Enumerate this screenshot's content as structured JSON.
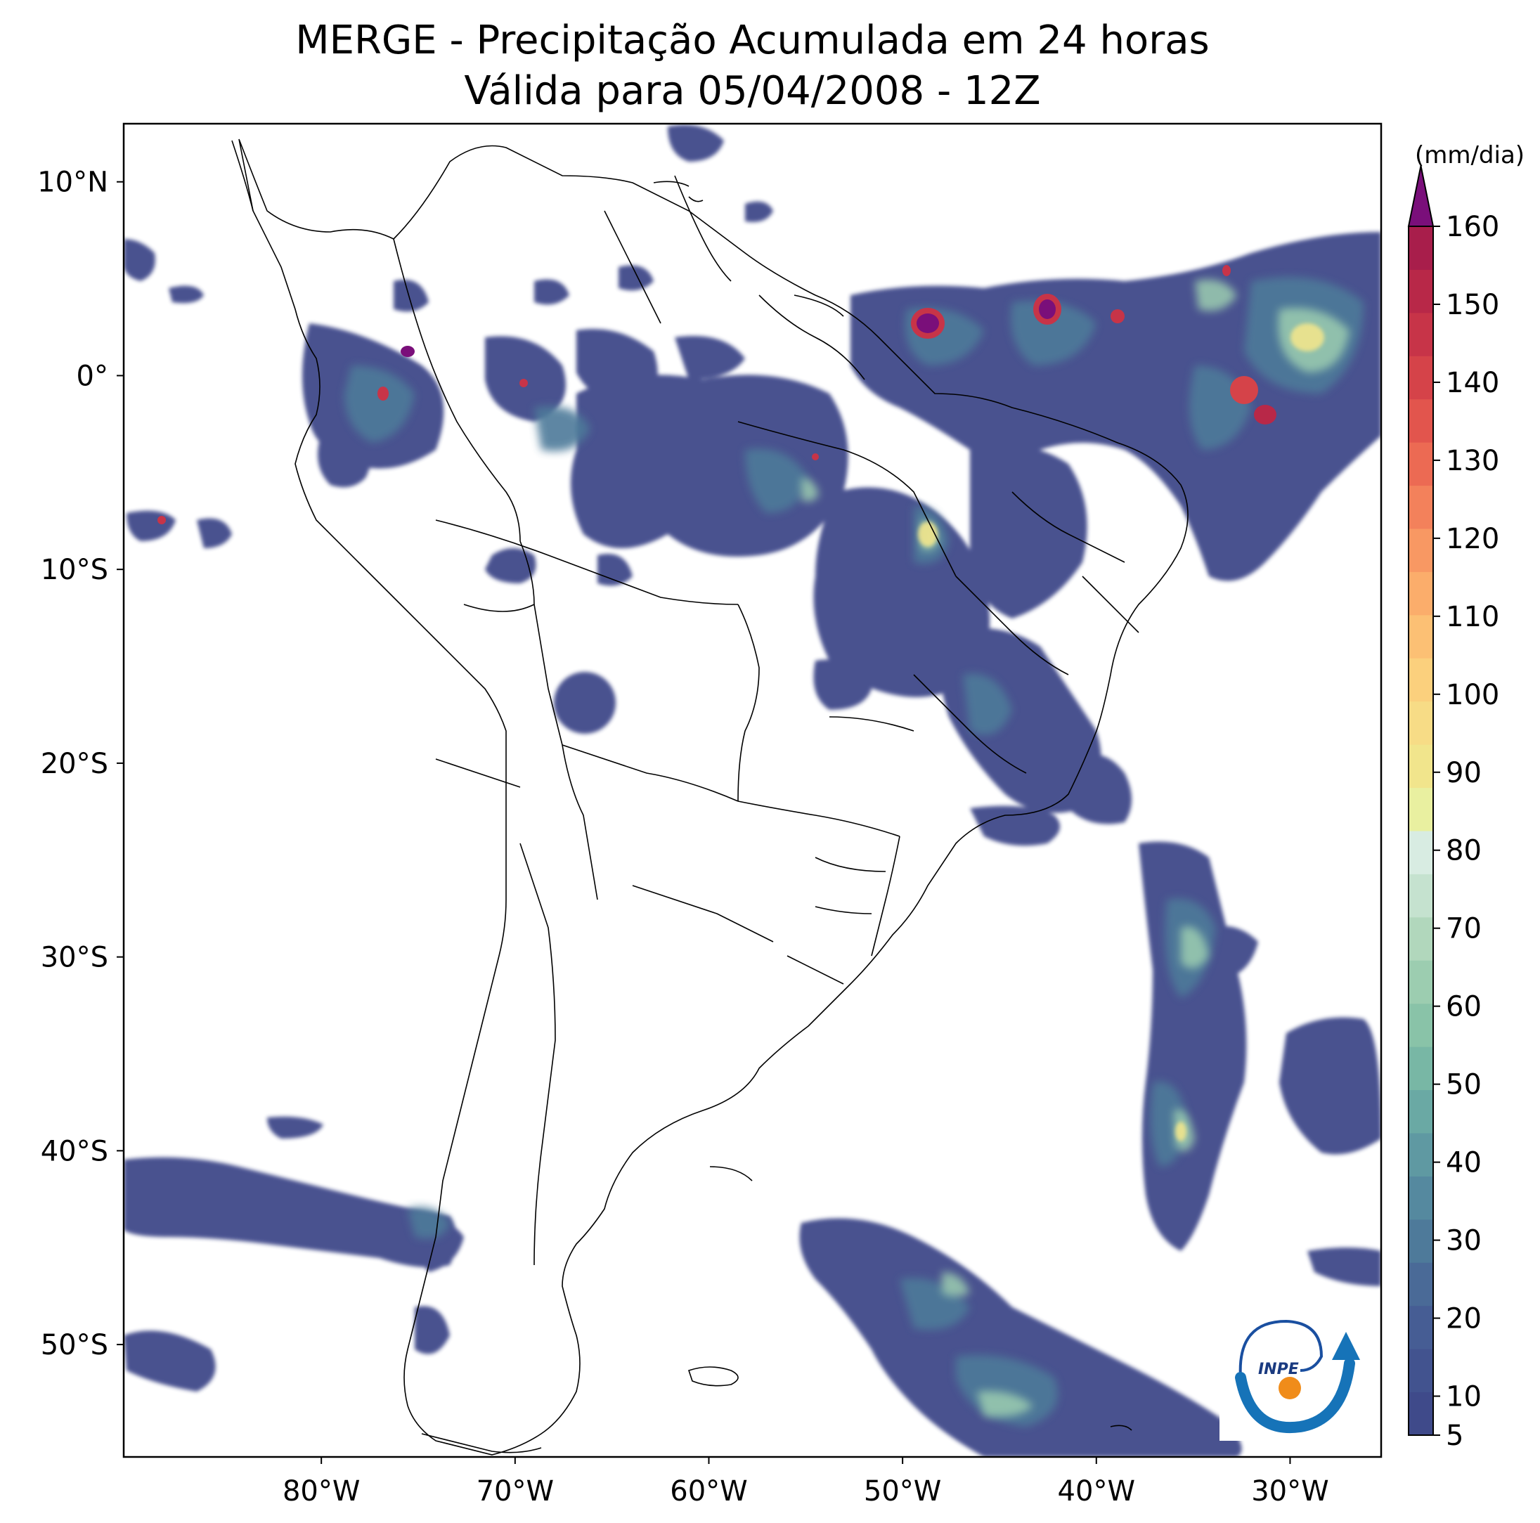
{
  "header": {
    "title_line1": "MERGE - Precipitação Acumulada em 24 horas",
    "title_line2": "Válida para 05/04/2008 - 12Z"
  },
  "axes": {
    "lat_labels": [
      "10°N",
      "0°",
      "10°S",
      "20°S",
      "30°S",
      "40°S",
      "50°S"
    ],
    "lat_values": [
      10,
      0,
      -10,
      -20,
      -30,
      -40,
      -50
    ],
    "lon_labels": [
      "80°W",
      "70°W",
      "60°W",
      "50°W",
      "40°W",
      "30°W"
    ],
    "lon_values": [
      -80,
      -70,
      -60,
      -50,
      -40,
      -30
    ],
    "lat_range": [
      -55.8,
      13.0
    ],
    "lon_range": [
      -90.2,
      -25.3
    ]
  },
  "colorbar": {
    "unit": "(mm/dia)",
    "tick_labels": [
      "5",
      "10",
      "20",
      "30",
      "40",
      "50",
      "60",
      "70",
      "80",
      "90",
      "100",
      "110",
      "120",
      "130",
      "140",
      "150",
      "160"
    ],
    "tick_values": [
      5,
      10,
      20,
      30,
      40,
      50,
      60,
      70,
      80,
      90,
      100,
      110,
      120,
      130,
      140,
      150,
      160
    ],
    "extend": "max",
    "over_color": "#7a0f7a",
    "colors": [
      "#3f4a8a",
      "#42538f",
      "#465d94",
      "#4a6a97",
      "#4e7a9a",
      "#55899f",
      "#5f99a2",
      "#6aa9a4",
      "#78b7a5",
      "#89c3a8",
      "#9ccdb0",
      "#b1d7bc",
      "#c5e2cf",
      "#d8ece2",
      "#e9f0a0",
      "#f1e58c",
      "#f7dc86",
      "#fbd07d",
      "#fcc074",
      "#fbad6b",
      "#f89863",
      "#f3815b",
      "#ec6a53",
      "#e2554d",
      "#d54349",
      "#c73448",
      "#b82848",
      "#a81e4b"
    ]
  },
  "logo": {
    "text": "INPE"
  }
}
